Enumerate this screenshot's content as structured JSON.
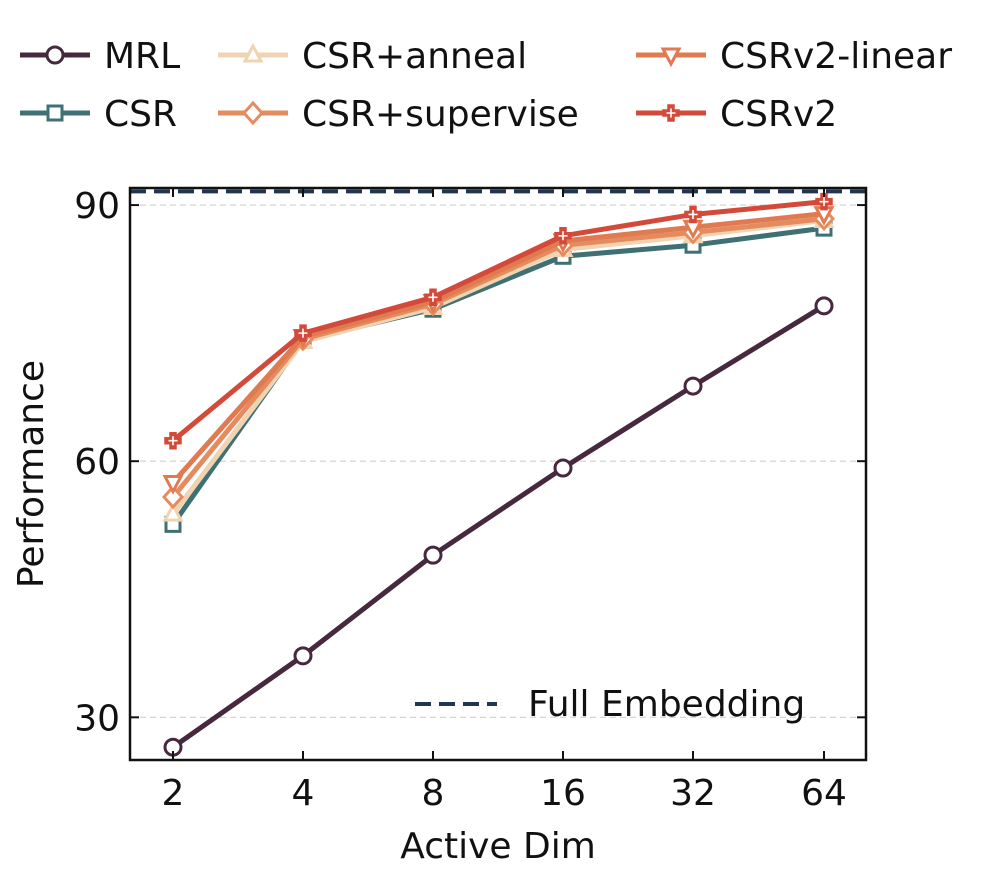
{
  "chart_data": {
    "type": "line",
    "xlabel": "Active Dim",
    "ylabel": "Performance",
    "x_scale": "log2",
    "categories": [
      "2",
      "4",
      "8",
      "16",
      "32",
      "64"
    ],
    "x": [
      2,
      4,
      8,
      16,
      32,
      64
    ],
    "ylim": [
      25,
      92
    ],
    "yticks": [
      30,
      60,
      90
    ],
    "grid": "horizontal-dashed",
    "legend_placement": "top",
    "series": [
      {
        "name": "MRL",
        "color": "#46293f",
        "marker": "circle",
        "values": [
          26.5,
          37.2,
          49.0,
          59.2,
          68.8,
          78.2
        ]
      },
      {
        "name": "CSR",
        "color": "#3f7074",
        "marker": "square",
        "values": [
          52.6,
          74.2,
          77.8,
          84.0,
          85.3,
          87.3
        ]
      },
      {
        "name": "CSR+anneal",
        "color": "#f0d3b1",
        "marker": "triangle-up",
        "values": [
          53.8,
          74.0,
          78.0,
          84.8,
          86.4,
          88.2
        ]
      },
      {
        "name": "CSR+supervise",
        "color": "#e58b60",
        "marker": "diamond",
        "values": [
          55.8,
          74.3,
          78.4,
          85.3,
          86.8,
          88.4
        ]
      },
      {
        "name": "CSRv2-linear",
        "color": "#e07a50",
        "marker": "triangle-down",
        "values": [
          57.5,
          74.6,
          78.7,
          85.8,
          87.4,
          89.0
        ]
      },
      {
        "name": "CSRv2",
        "color": "#d44a3a",
        "marker": "plus",
        "values": [
          62.4,
          75.0,
          79.2,
          86.4,
          88.9,
          90.4
        ]
      }
    ],
    "reference_line": {
      "name": "Full Embedding",
      "value": 91.6,
      "color": "#1f3552",
      "style": "dashed"
    }
  }
}
